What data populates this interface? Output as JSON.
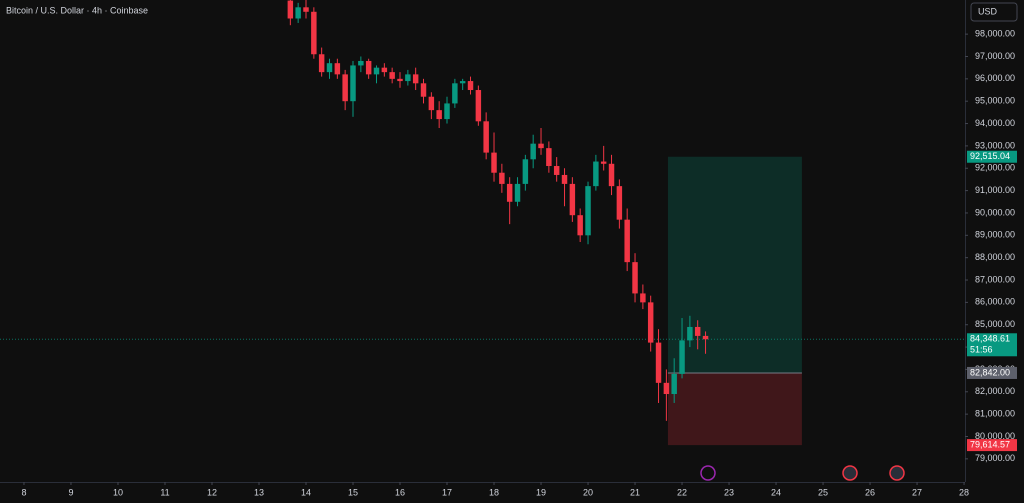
{
  "chart_data": {
    "type": "candlestick",
    "title": "Bitcoin / U.S. Dollar · 4h · Coinbase",
    "currency_button": "USD",
    "up_color": "#089981",
    "down_color": "#f23645",
    "xlim": [
      7.49,
      28.02
    ],
    "xticks": [
      8,
      9,
      10,
      11,
      12,
      13,
      14,
      15,
      16,
      17,
      18,
      19,
      20,
      21,
      22,
      23,
      24,
      25,
      26,
      27,
      28
    ],
    "ylim": [
      77964,
      99527
    ],
    "yticks": [
      {
        "value": 98000,
        "label": "98,000.00"
      },
      {
        "value": 97000,
        "label": "97,000.00"
      },
      {
        "value": 96000,
        "label": "96,000.00"
      },
      {
        "value": 95000,
        "label": "95,000.00"
      },
      {
        "value": 94000,
        "label": "94,000.00"
      },
      {
        "value": 93000,
        "label": "93,000.00"
      },
      {
        "value": 92000,
        "label": "92,000.00"
      },
      {
        "value": 91000,
        "label": "91,000.00"
      },
      {
        "value": 90000,
        "label": "90,000.00"
      },
      {
        "value": 89000,
        "label": "89,000.00"
      },
      {
        "value": 88000,
        "label": "88,000.00"
      },
      {
        "value": 87000,
        "label": "87,000.00"
      },
      {
        "value": 86000,
        "label": "86,000.00"
      },
      {
        "value": 85000,
        "label": "85,000.00"
      },
      {
        "value": 84000,
        "label": "84,000.00"
      },
      {
        "value": 83000,
        "label": "83,000.00"
      },
      {
        "value": 82000,
        "label": "82,000.00"
      },
      {
        "value": 81000,
        "label": "81,000.00"
      },
      {
        "value": 80000,
        "label": "80,000.00"
      },
      {
        "value": 79000,
        "label": "79,000.00"
      }
    ],
    "x": [
      13.667,
      13.833,
      14.0,
      14.167,
      14.333,
      14.5,
      14.667,
      14.833,
      15.0,
      15.167,
      15.333,
      15.5,
      15.667,
      15.833,
      16.0,
      16.167,
      16.333,
      16.5,
      16.667,
      16.833,
      17.0,
      17.167,
      17.333,
      17.5,
      17.667,
      17.833,
      18.0,
      18.167,
      18.333,
      18.5,
      18.667,
      18.833,
      19.0,
      19.167,
      19.333,
      19.5,
      19.667,
      19.833,
      20.0,
      20.167,
      20.333,
      20.5,
      20.667,
      20.833,
      21.0,
      21.167,
      21.333,
      21.5,
      21.667,
      21.833,
      22.0,
      22.167,
      22.333,
      22.5
    ],
    "open": [
      99500,
      98700,
      99200,
      99000,
      97100,
      96300,
      96700,
      96200,
      95000,
      96600,
      96800,
      96200,
      96500,
      96300,
      96000,
      95900,
      96200,
      95800,
      95200,
      94600,
      94200,
      94900,
      95800,
      95900,
      95500,
      94100,
      92700,
      91800,
      91300,
      90500,
      91300,
      92400,
      93100,
      92900,
      92100,
      91700,
      91300,
      89900,
      89000,
      91200,
      92300,
      92200,
      91200,
      89700,
      87800,
      86400,
      86000,
      84200,
      82400,
      81900,
      82800,
      84300,
      84900,
      84500
    ],
    "high": [
      99527,
      99400,
      99527,
      99200,
      97400,
      96900,
      96900,
      96400,
      96800,
      97000,
      96900,
      96600,
      96700,
      96500,
      96300,
      96400,
      96500,
      96000,
      95400,
      95000,
      95200,
      96000,
      96000,
      96100,
      95700,
      94500,
      93600,
      92200,
      91600,
      91600,
      92600,
      93500,
      93800,
      93200,
      92500,
      92000,
      91600,
      90200,
      91400,
      92600,
      93000,
      92600,
      91500,
      90200,
      88200,
      86800,
      86300,
      84800,
      83000,
      83500,
      85300,
      85400,
      85200,
      84700
    ],
    "low": [
      98400,
      98500,
      98700,
      96900,
      96100,
      96000,
      96000,
      94600,
      94300,
      96300,
      96000,
      95800,
      96100,
      95800,
      95600,
      95700,
      95500,
      94900,
      94200,
      93800,
      94000,
      94700,
      95500,
      95300,
      93900,
      92400,
      91400,
      90900,
      89500,
      90300,
      91000,
      92000,
      92600,
      91800,
      91400,
      90300,
      89600,
      88700,
      88600,
      91000,
      91900,
      90800,
      89300,
      87400,
      86000,
      85700,
      83800,
      81500,
      80700,
      81500,
      82600,
      84000,
      83900,
      83700
    ],
    "close": [
      98700,
      99200,
      99000,
      97100,
      96300,
      96700,
      96200,
      95000,
      96600,
      96800,
      96200,
      96500,
      96300,
      96000,
      95900,
      96200,
      95800,
      95200,
      94600,
      94200,
      94900,
      95800,
      95900,
      95500,
      94100,
      92700,
      91800,
      91300,
      90500,
      91300,
      92400,
      93100,
      92900,
      92100,
      91700,
      91300,
      89900,
      89000,
      91200,
      92300,
      92200,
      91200,
      89700,
      87800,
      86400,
      86000,
      84200,
      82400,
      81900,
      82800,
      84300,
      84900,
      84500,
      84348.61
    ],
    "position": {
      "x_start": 21.7,
      "x_end": 24.55,
      "target": 92515.04,
      "target_label": "92,515.04",
      "entry": 82842,
      "entry_label": "82,842.00",
      "stop": 79614.57,
      "stop_label": "79,614.57"
    },
    "last_price": 84348.61,
    "last_price_label": "84,348.61",
    "countdown": "51:56"
  }
}
